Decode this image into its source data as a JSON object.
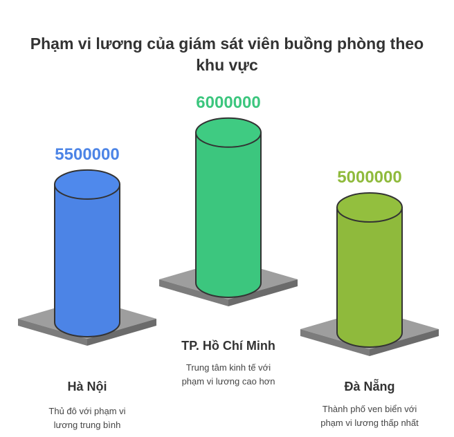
{
  "title_lines": [
    "Phạm vi lương của giám sát viên buồng phòng theo",
    "khu vực"
  ],
  "chart_data": {
    "type": "bar",
    "categories": [
      "Hà Nội",
      "TP. Hồ Chí Minh",
      "Đà Nẵng"
    ],
    "values": [
      5500000,
      6000000,
      5000000
    ],
    "value_labels": [
      "5500000",
      "6000000",
      "5000000"
    ],
    "descriptions": [
      [
        "Thủ đô với phạm vi",
        "lương trung bình"
      ],
      [
        "Trung tâm kinh tế với",
        "phạm vi lương cao hơn"
      ],
      [
        "Thành phố ven biển với",
        "phạm vi lương thấp nhất"
      ]
    ],
    "colors": [
      "#4C84E6",
      "#3CC67E",
      "#8FBA3C"
    ],
    "top_colors": [
      "#4F89EC",
      "#3FCB82",
      "#93BF3E"
    ],
    "title": "Phạm vi lương của giám sát viên buồng phòng theo khu vực"
  }
}
